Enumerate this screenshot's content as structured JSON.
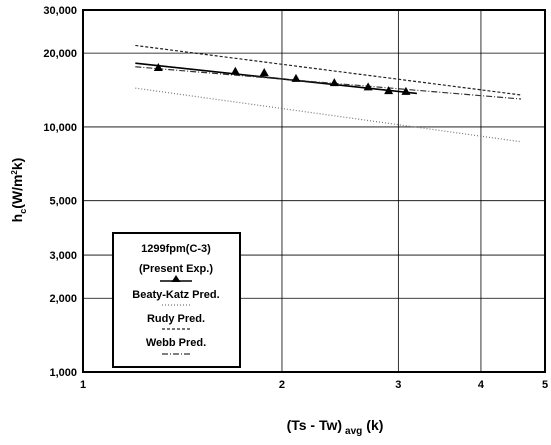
{
  "chart_data": {
    "type": "line",
    "title": "",
    "xlabel_main": "(Ts - Tw)",
    "xlabel_sub": "avg",
    "xlabel_unit": "(k)",
    "ylabel_main": "h",
    "ylabel_sub": "c",
    "ylabel_unit": "(W/m",
    "ylabel_sup": "2",
    "ylabel_end": "k)",
    "x_scale": "log",
    "y_scale": "log",
    "xlim": [
      1,
      5
    ],
    "ylim": [
      1000,
      30000
    ],
    "grid": true,
    "x_ticks": [
      1,
      2,
      3,
      4,
      5
    ],
    "x_tick_labels": [
      "1",
      "2",
      "3",
      "4",
      "5"
    ],
    "y_ticks": [
      1000,
      2000,
      3000,
      5000,
      10000,
      20000,
      30000
    ],
    "y_tick_labels": [
      "1,000",
      "2,000",
      "3,000",
      "5,000",
      "10,000",
      "20,000",
      "30,000"
    ],
    "legend_position": "lower-left",
    "legend_title": "1299fpm(C-3)",
    "series": [
      {
        "name": "(Present Exp.)",
        "style": "markers-with-fit",
        "color": "#000000",
        "x": [
          1.3,
          1.7,
          1.88,
          2.1,
          2.4,
          2.7,
          2.9,
          3.08
        ],
        "y": [
          17400,
          16800,
          16600,
          15700,
          15100,
          14500,
          14000,
          13900
        ],
        "fit_x": [
          1.2,
          3.2
        ],
        "fit_y": [
          18200,
          13700
        ]
      },
      {
        "name": "Beaty-Katz Pred.",
        "style": "dotted",
        "color": "#777777",
        "x": [
          1.2,
          4.6
        ],
        "y": [
          14400,
          8700
        ]
      },
      {
        "name": "Rudy Pred.",
        "style": "dashed-fine",
        "color": "#222222",
        "x": [
          1.2,
          4.6
        ],
        "y": [
          21500,
          13500
        ]
      },
      {
        "name": "Webb Pred.",
        "style": "dash-dot",
        "color": "#333333",
        "x": [
          1.2,
          4.6
        ],
        "y": [
          17600,
          13000
        ]
      }
    ]
  }
}
